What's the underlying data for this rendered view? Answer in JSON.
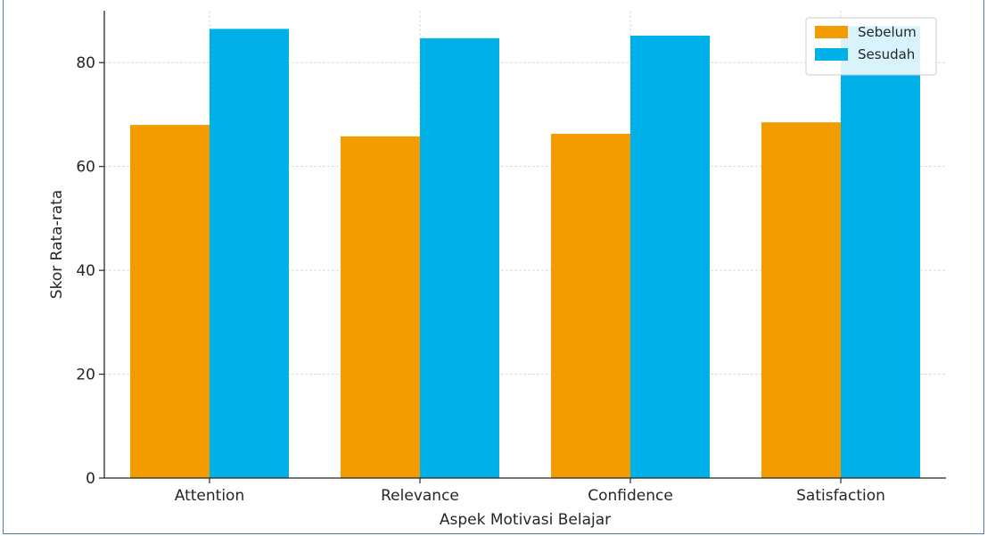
{
  "chart_data": {
    "type": "bar",
    "title": "",
    "xlabel": "Aspek Motivasi Belajar",
    "ylabel": "Skor Rata-rata",
    "categories": [
      "Attention",
      "Relevance",
      "Confidence",
      "Satisfaction"
    ],
    "series": [
      {
        "name": "Sebelum",
        "values": [
          68.0,
          65.8,
          66.3,
          68.5
        ],
        "color": "#f39c00"
      },
      {
        "name": "Sesudah",
        "values": [
          86.5,
          84.7,
          85.2,
          87.0
        ],
        "color": "#00b0e8"
      }
    ],
    "ylim": [
      0,
      90
    ],
    "yticks": [
      0,
      20,
      40,
      60,
      80
    ],
    "grid": true,
    "legend": "top-right"
  }
}
